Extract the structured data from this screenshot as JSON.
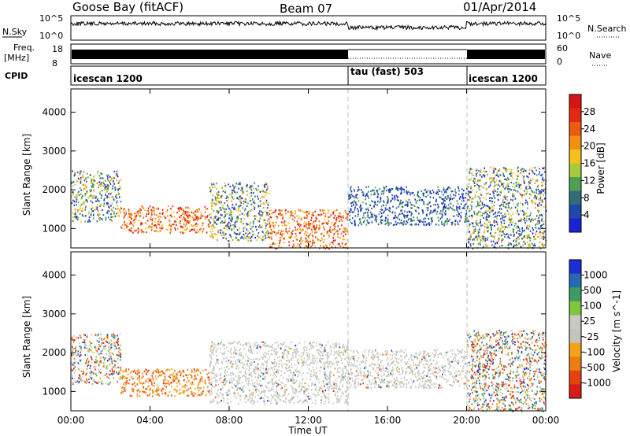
{
  "header": {
    "station": "Goose Bay (fitACF)",
    "beam": "Beam 07",
    "date": "01/Apr/2014"
  },
  "top_panels": {
    "nsky_label": "N.Sky",
    "nsky_ticks": [
      "10^5",
      "10^0"
    ],
    "nsearch_label": "N.Search",
    "nsearch_ticks": [
      "10^5",
      "10^0"
    ],
    "freq_label": "Freq.",
    "freq_unit": "[MHz]",
    "freq_ticks": [
      "18",
      "8"
    ],
    "nave_label": "Nave",
    "nave_ticks": [
      "60",
      "0"
    ],
    "cpid_label": "CPID",
    "cpid_segments": [
      {
        "label": "icescan 1200",
        "start": 0,
        "end": 14
      },
      {
        "label": "tau (fast) 503",
        "start": 14,
        "end": 20
      },
      {
        "label": "icescan 1200",
        "start": 20,
        "end": 24
      }
    ]
  },
  "x_axis": {
    "label": "Time UT",
    "ticks": [
      "00:00",
      "04:00",
      "08:00",
      "12:00",
      "16:00",
      "20:00",
      "00:00"
    ],
    "tick_hours": [
      0,
      4,
      8,
      12,
      16,
      20,
      24
    ],
    "range": [
      0,
      24
    ]
  },
  "colors": {
    "power": [
      "#1b22d6",
      "#1f49a8",
      "#2f6e77",
      "#4ea055",
      "#a6cc3d",
      "#f6c21a",
      "#f18f12",
      "#ec5c10",
      "#e42a12",
      "#d81515"
    ],
    "velocity": [
      "#1c2ed0",
      "#246bb1",
      "#3f9a65",
      "#7dc63e",
      "#c8c8c0",
      "#c4c4bc",
      "#f4a318",
      "#ee7d11",
      "#e4430f",
      "#d81b1b"
    ],
    "grey": "#c8c8c0"
  },
  "chart_data": [
    {
      "type": "heatmap",
      "name": "power",
      "ylabel": "Slant Range [km]",
      "yticks": [
        1000,
        2000,
        3000,
        4000
      ],
      "ylim": [
        500,
        4600
      ],
      "xlim": [
        0,
        24
      ],
      "colorbar_label": "Power [dB]",
      "colorbar_ticks": [
        "4",
        "8",
        "12",
        "16",
        "20",
        "24",
        "28"
      ],
      "regions": [
        {
          "t0": 0.0,
          "t1": 2.5,
          "r0": 1200,
          "r1": 2500,
          "level": "mixed"
        },
        {
          "t0": 2.5,
          "t1": 7.0,
          "r0": 900,
          "r1": 1600,
          "level": "high"
        },
        {
          "t0": 7.0,
          "t1": 10.0,
          "r0": 700,
          "r1": 2200,
          "level": "mixed"
        },
        {
          "t0": 10.0,
          "t1": 14.0,
          "r0": 500,
          "r1": 1500,
          "level": "high"
        },
        {
          "t0": 14.0,
          "t1": 20.0,
          "r0": 1100,
          "r1": 2100,
          "level": "low"
        },
        {
          "t0": 20.0,
          "t1": 24.0,
          "r0": 500,
          "r1": 2600,
          "level": "mixed"
        }
      ]
    },
    {
      "type": "heatmap",
      "name": "velocity",
      "ylabel": "Slant Range [km]",
      "yticks": [
        1000,
        2000,
        3000,
        4000
      ],
      "ylim": [
        500,
        4600
      ],
      "xlim": [
        0,
        24
      ],
      "colorbar_label": "Velocity [m s^-1]",
      "colorbar_ticks": [
        "1000",
        "500",
        "100",
        "25",
        "-25",
        "-100",
        "-500",
        "-1000"
      ],
      "regions": [
        {
          "t0": 0.0,
          "t1": 2.5,
          "r0": 1200,
          "r1": 2500,
          "level": "mixed"
        },
        {
          "t0": 2.5,
          "t1": 7.0,
          "r0": 900,
          "r1": 1600,
          "level": "negative"
        },
        {
          "t0": 7.0,
          "t1": 14.0,
          "r0": 700,
          "r1": 2300,
          "level": "ground"
        },
        {
          "t0": 14.0,
          "t1": 20.0,
          "r0": 1100,
          "r1": 2100,
          "level": "ground"
        },
        {
          "t0": 20.0,
          "t1": 24.0,
          "r0": 500,
          "r1": 2600,
          "level": "mixed"
        }
      ]
    }
  ]
}
